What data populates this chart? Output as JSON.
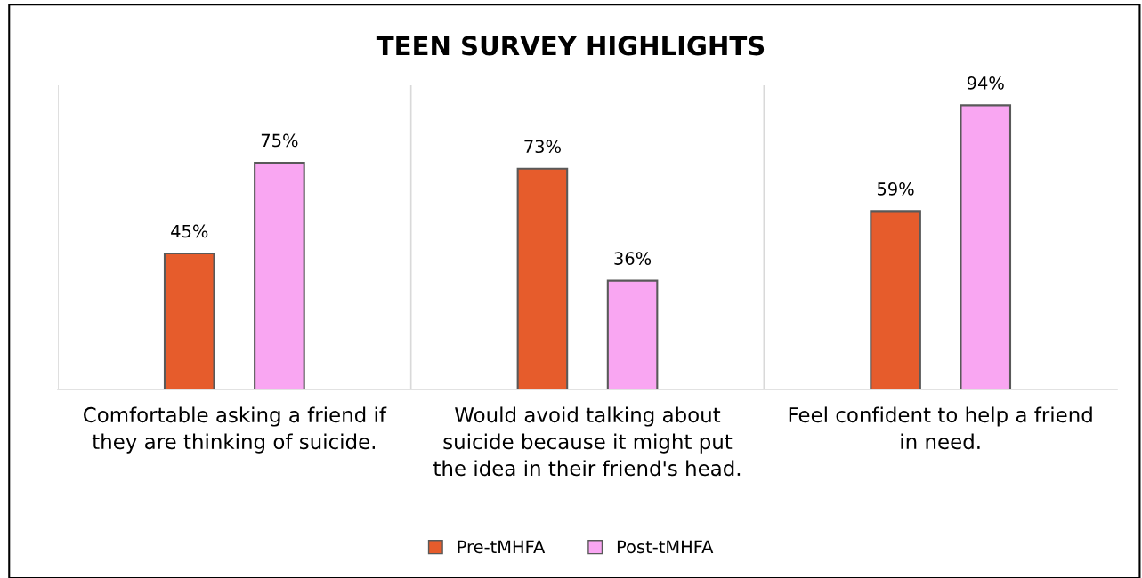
{
  "chart_data": {
    "type": "bar",
    "title": "TEEN SURVEY HIGHLIGHTS",
    "categories": [
      "Comfortable asking a friend if\nthey are thinking of suicide.",
      "Would avoid talking about\nsuicide because it might put\nthe idea in their friend's head.",
      "Feel confident to help a friend\nin need."
    ],
    "series": [
      {
        "name": "Pre-tMHFA",
        "color": "#e65c2c",
        "values": [
          45,
          73,
          59
        ],
        "value_labels": [
          "45%",
          "73%",
          "59%"
        ]
      },
      {
        "name": "Post-tMHFA",
        "color": "#f9a6f2",
        "values": [
          75,
          36,
          94
        ],
        "value_labels": [
          "75%",
          "36%",
          "94%"
        ]
      }
    ],
    "grid": "x",
    "legend": "bottom"
  }
}
